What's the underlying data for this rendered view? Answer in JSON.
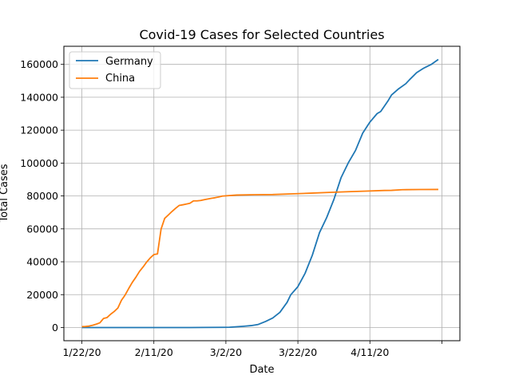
{
  "chart_data": {
    "type": "line",
    "title": "Covid-19 Cases for Selected Countries",
    "xlabel": "Date",
    "ylabel": "Total Cases",
    "grid": true,
    "legend_position": "top-left",
    "x_start": "1/22/20",
    "x_ticks": [
      "1/22/20",
      "2/11/20",
      "3/2/20",
      "3/22/20",
      "4/11/20",
      ""
    ],
    "y_ticks": [
      0,
      20000,
      40000,
      60000,
      80000,
      100000,
      120000,
      140000,
      160000
    ],
    "ylim": [
      -8000,
      171000
    ],
    "x_range_days": [
      -5,
      105
    ],
    "series": [
      {
        "name": "Germany",
        "color": "#1f77b4",
        "points": [
          [
            "1/22/20",
            0
          ],
          [
            "1/27/20",
            1
          ],
          [
            "2/1/20",
            8
          ],
          [
            "2/11/20",
            16
          ],
          [
            "2/21/20",
            16
          ],
          [
            "3/1/20",
            130
          ],
          [
            "3/3/20",
            196
          ],
          [
            "3/5/20",
            482
          ],
          [
            "3/7/20",
            799
          ],
          [
            "3/9/20",
            1176
          ],
          [
            "3/11/20",
            1908
          ],
          [
            "3/13/20",
            3675
          ],
          [
            "3/15/20",
            5795
          ],
          [
            "3/17/20",
            9257
          ],
          [
            "3/19/20",
            15320
          ],
          [
            "3/20/20",
            19848
          ],
          [
            "3/22/20",
            24873
          ],
          [
            "3/24/20",
            32986
          ],
          [
            "3/26/20",
            43938
          ],
          [
            "3/28/20",
            57695
          ],
          [
            "3/30/20",
            66885
          ],
          [
            "4/1/20",
            77872
          ],
          [
            "4/3/20",
            91159
          ],
          [
            "4/5/20",
            100123
          ],
          [
            "4/7/20",
            107663
          ],
          [
            "4/9/20",
            118181
          ],
          [
            "4/11/20",
            124908
          ],
          [
            "4/13/20",
            130072
          ],
          [
            "4/14/20",
            131359
          ],
          [
            "4/16/20",
            137698
          ],
          [
            "4/17/20",
            141397
          ],
          [
            "4/19/20",
            145184
          ],
          [
            "4/21/20",
            148291
          ],
          [
            "4/22/20",
            150648
          ],
          [
            "4/24/20",
            154999
          ],
          [
            "4/26/20",
            157770
          ],
          [
            "4/28/20",
            159912
          ],
          [
            "4/30/20",
            163009
          ]
        ]
      },
      {
        "name": "China",
        "color": "#ff7f0e",
        "points": [
          [
            "1/22/20",
            548
          ],
          [
            "1/23/20",
            643
          ],
          [
            "1/24/20",
            920
          ],
          [
            "1/25/20",
            1406
          ],
          [
            "1/26/20",
            2075
          ],
          [
            "1/27/20",
            2877
          ],
          [
            "1/28/20",
            5509
          ],
          [
            "1/29/20",
            6087
          ],
          [
            "1/30/20",
            8141
          ],
          [
            "1/31/20",
            9802
          ],
          [
            "2/1/20",
            11891
          ],
          [
            "2/2/20",
            16630
          ],
          [
            "2/3/20",
            19716
          ],
          [
            "2/4/20",
            23707
          ],
          [
            "2/5/20",
            27440
          ],
          [
            "2/6/20",
            30587
          ],
          [
            "2/7/20",
            34110
          ],
          [
            "2/8/20",
            36814
          ],
          [
            "2/9/20",
            39829
          ],
          [
            "2/10/20",
            42354
          ],
          [
            "2/11/20",
            44386
          ],
          [
            "2/12/20",
            44759
          ],
          [
            "2/13/20",
            59895
          ],
          [
            "2/14/20",
            66358
          ],
          [
            "2/15/20",
            68413
          ],
          [
            "2/16/20",
            70513
          ],
          [
            "2/17/20",
            72434
          ],
          [
            "2/18/20",
            74211
          ],
          [
            "2/19/20",
            74619
          ],
          [
            "2/20/20",
            75077
          ],
          [
            "2/21/20",
            75550
          ],
          [
            "2/22/20",
            77001
          ],
          [
            "2/23/20",
            77022
          ],
          [
            "2/24/20",
            77241
          ],
          [
            "2/25/20",
            77754
          ],
          [
            "2/26/20",
            78166
          ],
          [
            "2/27/20",
            78600
          ],
          [
            "2/28/20",
            78928
          ],
          [
            "2/29/20",
            79356
          ],
          [
            "3/1/20",
            79932
          ],
          [
            "3/5/20",
            80565
          ],
          [
            "3/10/20",
            80761
          ],
          [
            "3/15/20",
            80860
          ],
          [
            "3/20/20",
            81250
          ],
          [
            "3/25/20",
            81661
          ],
          [
            "3/30/20",
            82122
          ],
          [
            "4/5/20",
            82602
          ],
          [
            "4/10/20",
            82941
          ],
          [
            "4/15/20",
            83356
          ],
          [
            "4/17/20",
            83403
          ],
          [
            "4/20/20",
            83817
          ],
          [
            "4/25/20",
            83912
          ],
          [
            "4/30/20",
            83956
          ]
        ]
      }
    ]
  }
}
